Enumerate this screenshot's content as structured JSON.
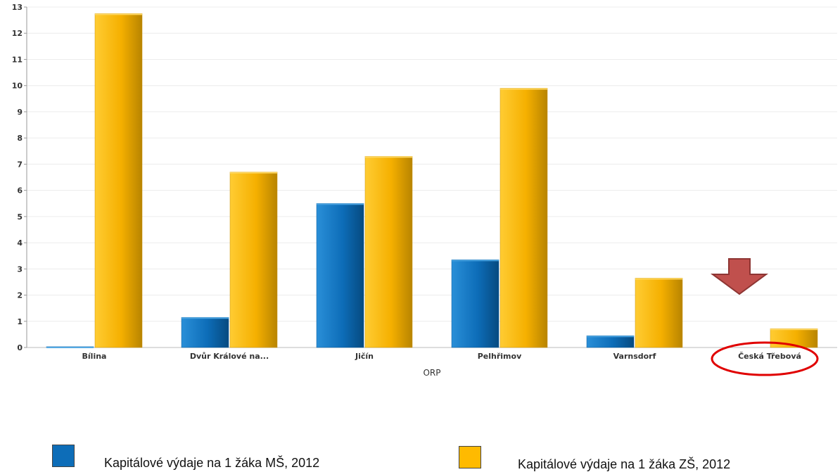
{
  "chart_data": {
    "type": "bar",
    "categories": [
      "Bílina",
      "Dvůr Králové na...",
      "Jičín",
      "Pelhřimov",
      "Varnsdorf",
      "Česká Třebová"
    ],
    "series": [
      {
        "name": "Kapitálové výdaje na 1 žáka MŠ, 2012",
        "color": "#0d6db8",
        "values": [
          0.03,
          1.15,
          5.5,
          3.35,
          0.45,
          0
        ]
      },
      {
        "name": "Kapitálové výdaje na 1 žáka ZŠ, 2012",
        "color": "#ffba00",
        "values": [
          12.75,
          6.7,
          7.3,
          9.9,
          2.65,
          0.72
        ]
      }
    ],
    "xlabel": "ORP",
    "ylabel": "",
    "ylim": [
      0,
      13
    ],
    "yticks": [
      "0",
      "1",
      "2",
      "3",
      "4",
      "5",
      "6",
      "7",
      "8",
      "9",
      "10",
      "11",
      "12",
      "13"
    ],
    "grid": true,
    "legend_position": "bottom",
    "annotations": [
      {
        "type": "arrow",
        "shape": "down-arrow",
        "target": "Česká Třebová",
        "color": "#c0504d"
      },
      {
        "type": "ellipse",
        "target": "Česká Třebová",
        "color": "#e00000"
      }
    ]
  },
  "legend": {
    "ms_label": "Kapitálové výdaje na 1 žáka MŠ, 2012",
    "zs_label": "Kapitálové výdaje na 1 žáka ZŠ, 2012",
    "ms_color": "#0d6db8",
    "zs_color": "#ffba00"
  }
}
